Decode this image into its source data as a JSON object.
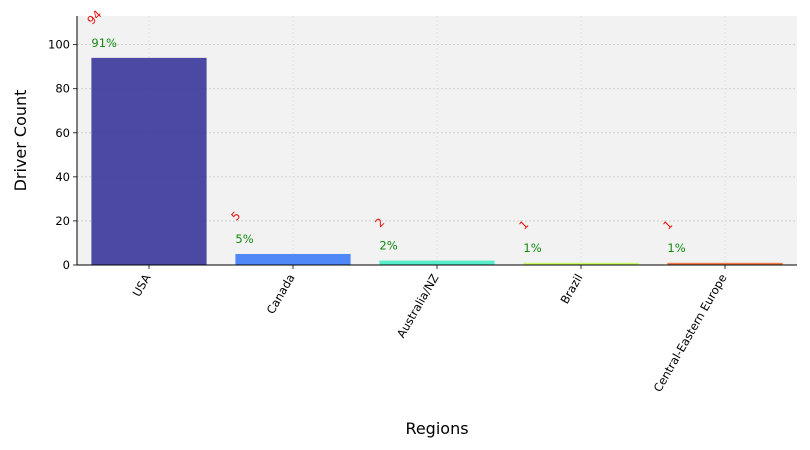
{
  "chart_data": {
    "type": "bar",
    "categories": [
      "USA",
      "Canada",
      "Australia/NZ",
      "Brazil",
      "Central-Eastern Europe"
    ],
    "values": [
      94,
      5,
      2,
      1,
      1
    ],
    "count_labels": [
      "94",
      "5",
      "2",
      "1",
      "1"
    ],
    "percent_labels": [
      "91%",
      "5%",
      "2%",
      "1%",
      "1%"
    ],
    "colors": [
      "#38369a",
      "#3f7cf7",
      "#46ecc4",
      "#c7f85a",
      "#ee6f35"
    ],
    "xlabel": "Regions",
    "ylabel": "Driver Count",
    "ylim": [
      0,
      113
    ],
    "yticks": [
      0,
      20,
      40,
      60,
      80,
      100
    ],
    "grid": true,
    "background": "#f2f2f2",
    "count_label_color": "#e8120c",
    "percent_label_color": "#118a11"
  }
}
